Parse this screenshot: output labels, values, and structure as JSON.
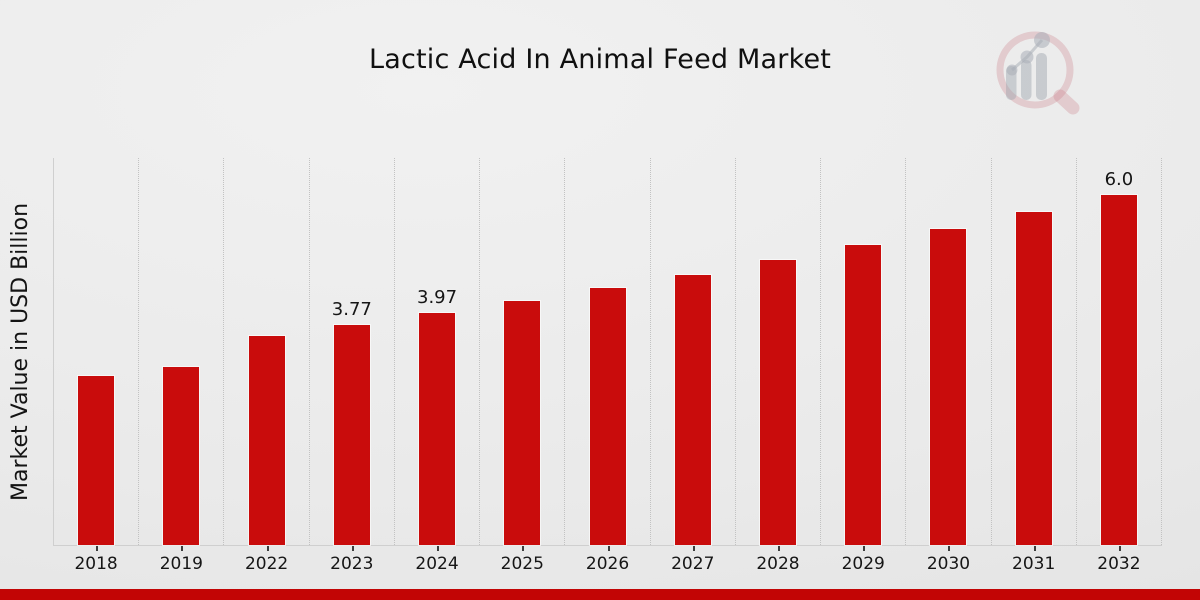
{
  "header": {
    "title": "Lactic Acid In Animal Feed Market"
  },
  "chart_data": {
    "type": "bar",
    "title": "Lactic Acid In Animal Feed Market",
    "categories": [
      "2018",
      "2019",
      "2022",
      "2023",
      "2024",
      "2025",
      "2026",
      "2027",
      "2028",
      "2029",
      "2030",
      "2031",
      "2032"
    ],
    "values": [
      2.9,
      3.05,
      3.58,
      3.77,
      3.97,
      4.18,
      4.4,
      4.63,
      4.88,
      5.14,
      5.41,
      5.7,
      6.0
    ],
    "bar_labels": [
      "",
      "",
      "",
      "3.77",
      "3.97",
      "",
      "",
      "",
      "",
      "",
      "",
      "",
      "6.0"
    ],
    "xlabel": "",
    "ylabel": "Market Value in USD Billion",
    "ylim": [
      0,
      6.63
    ],
    "bar_color": "#c90c0c",
    "grid": "vertical-dotted",
    "legend": "none",
    "y_tick_labels_visible": false
  },
  "footer": {
    "accent_bar_color": "#c20505"
  },
  "branding": {
    "logo_name": "magnifier-bar-chart-watermark",
    "ring_color": "rgba(203,125,136,0.30)",
    "bars_color": "rgba(158,163,174,0.45)"
  }
}
